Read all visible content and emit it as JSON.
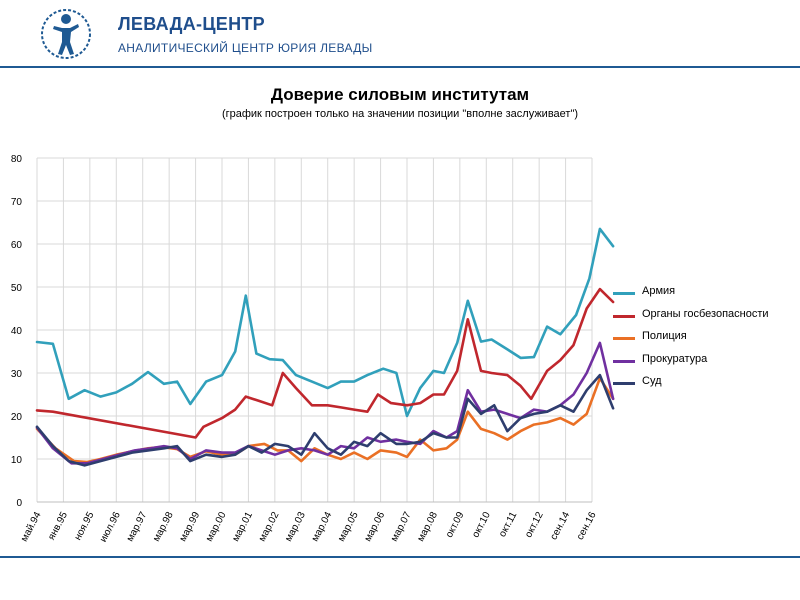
{
  "header": {
    "org_name": "ЛЕВАДА-ЦЕНТР",
    "org_sub": "АНАЛИТИЧЕСКИЙ ЦЕНТР ЮРИЯ ЛЕВАДЫ"
  },
  "chart_data": {
    "type": "line",
    "title": "Доверие силовым институтам",
    "subtitle": "(график построен  только на значении позиции \"вполне заслуживает\")",
    "ylim": [
      0,
      80
    ],
    "yticks": [
      "0",
      "10",
      "20",
      "30",
      "40",
      "50",
      "60",
      "70",
      "80"
    ],
    "xticks": [
      "май.94",
      "янв.95",
      "ноя.95",
      "июл.96",
      "мар.97",
      "мар.98",
      "мар.99",
      "мар.00",
      "мар.01",
      "мар.02",
      "мар.03",
      "мар.04",
      "мар.05",
      "мар.06",
      "мар.07",
      "мар.08",
      "окт.09",
      "окт.10",
      "окт.11",
      "окт.12",
      "сен.14",
      "сен.16"
    ],
    "grid": true,
    "legend_position": "right",
    "series": [
      {
        "name": "Армия",
        "color": "#31a0bb",
        "values": [
          [
            0.0,
            37.2
          ],
          [
            0.6,
            36.8
          ],
          [
            1.2,
            24.0
          ],
          [
            1.8,
            26.0
          ],
          [
            2.4,
            24.5
          ],
          [
            3.0,
            25.5
          ],
          [
            3.6,
            27.5
          ],
          [
            4.2,
            30.2
          ],
          [
            4.8,
            27.5
          ],
          [
            5.3,
            28.0
          ],
          [
            5.8,
            22.8
          ],
          [
            6.4,
            28.0
          ],
          [
            7.0,
            29.5
          ],
          [
            7.5,
            35.0
          ],
          [
            7.9,
            48.0
          ],
          [
            8.3,
            34.5
          ],
          [
            8.8,
            33.2
          ],
          [
            9.3,
            33.0
          ],
          [
            9.8,
            29.5
          ],
          [
            10.4,
            28.0
          ],
          [
            11.0,
            26.5
          ],
          [
            11.5,
            28.0
          ],
          [
            12.0,
            28.0
          ],
          [
            12.5,
            29.5
          ],
          [
            13.1,
            31.0
          ],
          [
            13.6,
            30.0
          ],
          [
            14.0,
            20.0
          ],
          [
            14.5,
            26.5
          ],
          [
            15.0,
            30.5
          ],
          [
            15.4,
            30.0
          ],
          [
            15.9,
            37.0
          ],
          [
            16.3,
            46.8
          ],
          [
            16.8,
            37.3
          ],
          [
            17.2,
            37.8
          ],
          [
            17.8,
            35.5
          ],
          [
            18.3,
            33.5
          ],
          [
            18.8,
            33.7
          ],
          [
            19.3,
            40.8
          ],
          [
            19.8,
            39.0
          ],
          [
            20.4,
            43.5
          ],
          [
            20.9,
            52.0
          ],
          [
            21.3,
            63.5
          ],
          [
            21.8,
            59.5
          ]
        ]
      },
      {
        "name": "Органы госбезопасности",
        "color": "#c0272d",
        "values": [
          [
            0.0,
            21.3
          ],
          [
            0.6,
            21.0
          ],
          [
            6.0,
            15.0
          ],
          [
            6.3,
            17.5
          ],
          [
            7.0,
            19.5
          ],
          [
            7.5,
            21.5
          ],
          [
            7.9,
            24.5
          ],
          [
            8.4,
            23.5
          ],
          [
            8.9,
            22.5
          ],
          [
            9.3,
            30.0
          ],
          [
            9.8,
            26.5
          ],
          [
            10.4,
            22.5
          ],
          [
            11.0,
            22.5
          ],
          [
            11.5,
            22.0
          ],
          [
            12.0,
            21.5
          ],
          [
            12.5,
            21.0
          ],
          [
            12.9,
            25.0
          ],
          [
            13.4,
            23.0
          ],
          [
            14.0,
            22.5
          ],
          [
            14.5,
            23.0
          ],
          [
            15.0,
            25.0
          ],
          [
            15.4,
            25.0
          ],
          [
            15.9,
            30.5
          ],
          [
            16.3,
            42.5
          ],
          [
            16.8,
            30.5
          ],
          [
            17.2,
            30.0
          ],
          [
            17.8,
            29.5
          ],
          [
            18.3,
            27.0
          ],
          [
            18.7,
            24.0
          ],
          [
            19.3,
            30.5
          ],
          [
            19.8,
            33.0
          ],
          [
            20.3,
            36.5
          ],
          [
            20.8,
            45.0
          ],
          [
            21.3,
            49.5
          ],
          [
            21.8,
            46.5
          ]
        ]
      },
      {
        "name": "Полиция",
        "color": "#ea7025",
        "values": [
          [
            0.0,
            17.0
          ],
          [
            0.7,
            12.5
          ],
          [
            1.4,
            9.5
          ],
          [
            1.9,
            9.3
          ],
          [
            2.4,
            10.0
          ],
          [
            3.0,
            11.0
          ],
          [
            3.6,
            11.8
          ],
          [
            4.2,
            12.5
          ],
          [
            4.7,
            12.8
          ],
          [
            5.3,
            12.3
          ],
          [
            5.8,
            10.5
          ],
          [
            6.4,
            11.8
          ],
          [
            7.0,
            11.0
          ],
          [
            7.5,
            11.0
          ],
          [
            8.0,
            13.0
          ],
          [
            8.6,
            13.5
          ],
          [
            9.1,
            12.0
          ],
          [
            9.5,
            12.0
          ],
          [
            10.0,
            9.5
          ],
          [
            10.5,
            12.5
          ],
          [
            11.0,
            11.0
          ],
          [
            11.5,
            10.0
          ],
          [
            12.0,
            11.5
          ],
          [
            12.5,
            10.0
          ],
          [
            13.0,
            12.0
          ],
          [
            13.6,
            11.5
          ],
          [
            14.0,
            10.5
          ],
          [
            14.5,
            14.5
          ],
          [
            15.0,
            12.0
          ],
          [
            15.5,
            12.5
          ],
          [
            15.9,
            14.5
          ],
          [
            16.3,
            21.0
          ],
          [
            16.8,
            17.0
          ],
          [
            17.3,
            16.0
          ],
          [
            17.8,
            14.5
          ],
          [
            18.3,
            16.5
          ],
          [
            18.8,
            18.0
          ],
          [
            19.3,
            18.5
          ],
          [
            19.8,
            19.5
          ],
          [
            20.3,
            18.0
          ],
          [
            20.8,
            20.5
          ],
          [
            21.3,
            28.8
          ],
          [
            21.8,
            24.0
          ]
        ]
      },
      {
        "name": "Прокуратура",
        "color": "#7030a0",
        "values": [
          [
            0.0,
            17.3
          ],
          [
            0.6,
            12.5
          ],
          [
            1.3,
            9.0
          ],
          [
            1.9,
            9.0
          ],
          [
            2.5,
            10.0
          ],
          [
            3.1,
            11.0
          ],
          [
            3.7,
            12.0
          ],
          [
            4.3,
            12.5
          ],
          [
            4.8,
            13.0
          ],
          [
            5.3,
            12.5
          ],
          [
            5.8,
            10.0
          ],
          [
            6.4,
            12.0
          ],
          [
            7.0,
            11.5
          ],
          [
            7.5,
            11.5
          ],
          [
            8.0,
            13.0
          ],
          [
            8.5,
            12.0
          ],
          [
            9.0,
            11.0
          ],
          [
            9.5,
            12.0
          ],
          [
            10.0,
            12.5
          ],
          [
            10.5,
            12.0
          ],
          [
            11.0,
            11.0
          ],
          [
            11.5,
            13.0
          ],
          [
            12.0,
            12.5
          ],
          [
            12.5,
            15.0
          ],
          [
            13.0,
            14.0
          ],
          [
            13.6,
            14.5
          ],
          [
            14.0,
            14.0
          ],
          [
            14.5,
            13.5
          ],
          [
            15.0,
            16.5
          ],
          [
            15.5,
            15.0
          ],
          [
            15.9,
            16.5
          ],
          [
            16.3,
            26.0
          ],
          [
            16.8,
            21.0
          ],
          [
            17.3,
            21.5
          ],
          [
            17.8,
            20.5
          ],
          [
            18.3,
            19.5
          ],
          [
            18.8,
            21.5
          ],
          [
            19.3,
            21.0
          ],
          [
            19.8,
            22.5
          ],
          [
            20.3,
            25.0
          ],
          [
            20.8,
            30.0
          ],
          [
            21.3,
            37.0
          ],
          [
            21.8,
            24.0
          ]
        ]
      },
      {
        "name": "Суд",
        "color": "#2e3e6e",
        "values": [
          [
            0.0,
            17.5
          ],
          [
            0.6,
            13.0
          ],
          [
            1.2,
            9.5
          ],
          [
            1.8,
            8.5
          ],
          [
            2.4,
            9.5
          ],
          [
            3.0,
            10.5
          ],
          [
            3.6,
            11.5
          ],
          [
            4.2,
            12.0
          ],
          [
            4.8,
            12.5
          ],
          [
            5.3,
            13.0
          ],
          [
            5.8,
            9.5
          ],
          [
            6.4,
            11.0
          ],
          [
            7.0,
            10.5
          ],
          [
            7.5,
            11.0
          ],
          [
            8.0,
            13.0
          ],
          [
            8.5,
            11.5
          ],
          [
            9.0,
            13.5
          ],
          [
            9.5,
            13.0
          ],
          [
            10.0,
            11.0
          ],
          [
            10.5,
            16.0
          ],
          [
            11.0,
            12.5
          ],
          [
            11.5,
            11.0
          ],
          [
            12.0,
            14.0
          ],
          [
            12.5,
            13.0
          ],
          [
            13.0,
            16.0
          ],
          [
            13.6,
            13.5
          ],
          [
            14.0,
            13.5
          ],
          [
            14.5,
            14.0
          ],
          [
            15.0,
            16.0
          ],
          [
            15.5,
            15.0
          ],
          [
            15.9,
            15.0
          ],
          [
            16.3,
            24.0
          ],
          [
            16.8,
            20.5
          ],
          [
            17.3,
            22.5
          ],
          [
            17.8,
            16.5
          ],
          [
            18.3,
            19.5
          ],
          [
            18.8,
            20.5
          ],
          [
            19.3,
            21.0
          ],
          [
            19.8,
            22.5
          ],
          [
            20.3,
            21.0
          ],
          [
            20.8,
            26.0
          ],
          [
            21.3,
            29.5
          ],
          [
            21.8,
            21.8
          ]
        ]
      }
    ]
  }
}
